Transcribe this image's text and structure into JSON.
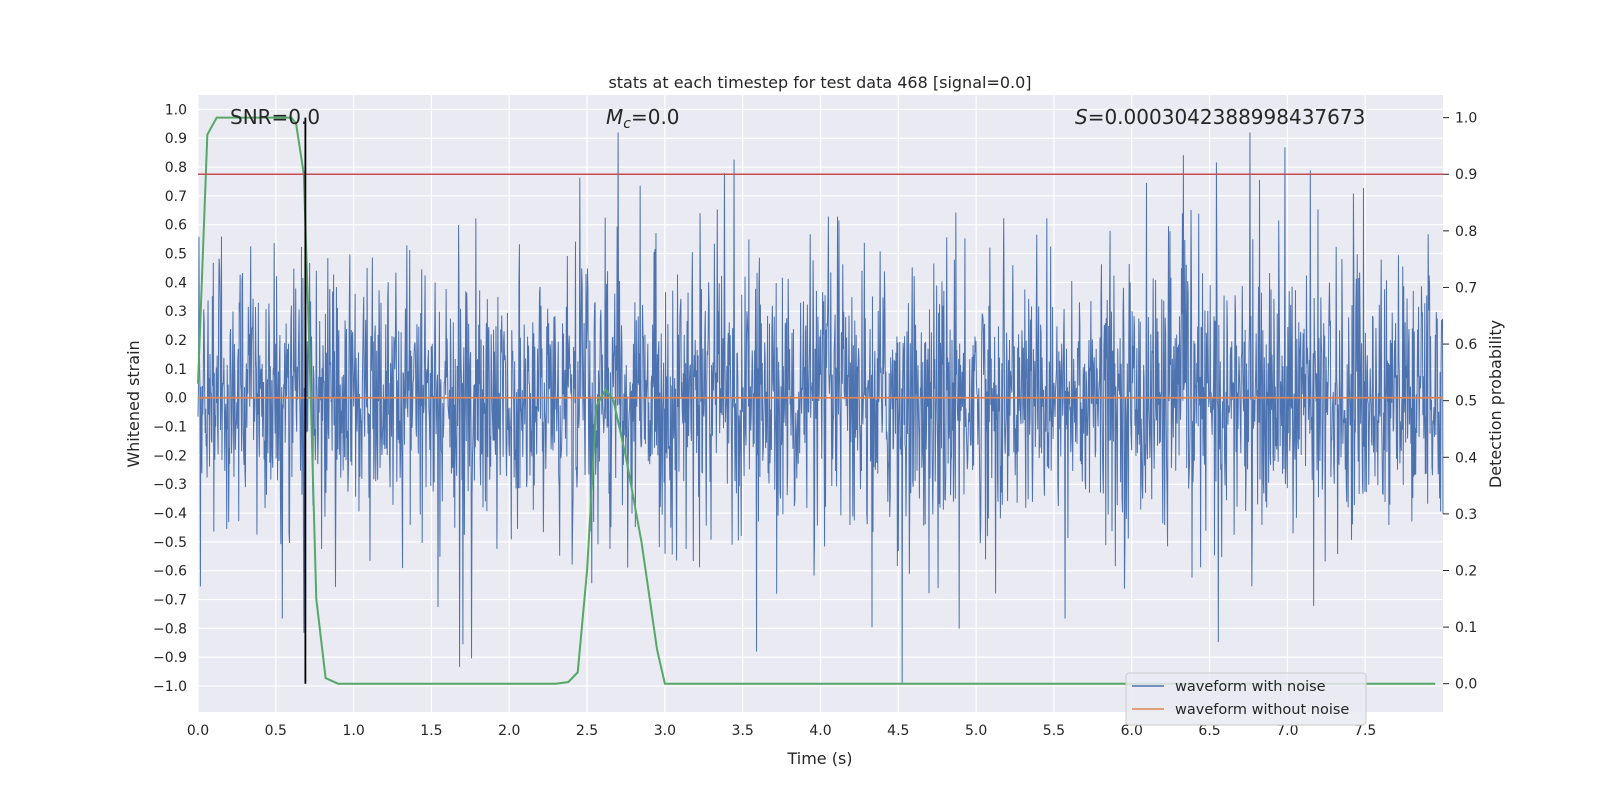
{
  "chart_data": {
    "type": "line",
    "title": "stats at each timestep for test data 468 [signal=0.0]",
    "xlabel": "Time (s)",
    "ylabel": "Whitened strain",
    "y2label": "Detection probability",
    "xlim": [
      0.0,
      8.0
    ],
    "ylim": [
      -1.09,
      1.05
    ],
    "y2lim": [
      -0.05,
      1.04
    ],
    "x_ticks": [
      "0.0",
      "0.5",
      "1.0",
      "1.5",
      "2.0",
      "2.5",
      "3.0",
      "3.5",
      "4.0",
      "4.5",
      "5.0",
      "5.5",
      "6.0",
      "6.5",
      "7.0",
      "7.5"
    ],
    "y_ticks": [
      "1.0",
      "0.9",
      "0.8",
      "0.7",
      "0.6",
      "0.5",
      "0.4",
      "0.3",
      "0.2",
      "0.1",
      "0.0",
      "−0.1",
      "−0.2",
      "−0.3",
      "−0.4",
      "−0.5",
      "−0.6",
      "−0.7",
      "−0.8",
      "−0.9",
      "−1.0"
    ],
    "y2_ticks": [
      "1.0",
      "0.9",
      "0.8",
      "0.7",
      "0.6",
      "0.5",
      "0.4",
      "0.3",
      "0.2",
      "0.1",
      "0.0"
    ],
    "grid": true,
    "legend_position": "lower-right",
    "annotations": {
      "snr": "SNR=0.0",
      "mc_symbol": "M",
      "mc_sub": "c",
      "mc_value": "=0.0",
      "s_symbol": "S",
      "s_value": "=0.0003042388998437673"
    },
    "series": [
      {
        "name": "waveform with noise",
        "axis": "left",
        "color": "#4c72b0",
        "style": "dense noise, amplitude ~±0.4 with spikes up to ±1.0"
      },
      {
        "name": "waveform without noise",
        "axis": "left",
        "color": "#dd8452",
        "values": [
          [
            0.0,
            0.0
          ],
          [
            8.0,
            0.0
          ]
        ]
      },
      {
        "name": "detection probability",
        "axis": "right",
        "color": "#55a868",
        "values": [
          [
            0.0,
            0.53
          ],
          [
            0.06,
            0.97
          ],
          [
            0.12,
            1.0
          ],
          [
            0.2,
            1.0
          ],
          [
            0.3,
            1.0
          ],
          [
            0.4,
            1.0
          ],
          [
            0.5,
            1.0
          ],
          [
            0.6,
            1.0
          ],
          [
            0.63,
            0.99
          ],
          [
            0.68,
            0.9
          ],
          [
            0.72,
            0.55
          ],
          [
            0.76,
            0.15
          ],
          [
            0.82,
            0.01
          ],
          [
            0.9,
            0.0
          ],
          [
            1.5,
            0.0
          ],
          [
            2.0,
            0.0
          ],
          [
            2.3,
            0.0
          ],
          [
            2.38,
            0.003
          ],
          [
            2.44,
            0.02
          ],
          [
            2.5,
            0.2
          ],
          [
            2.56,
            0.49
          ],
          [
            2.62,
            0.52
          ],
          [
            2.67,
            0.5
          ],
          [
            2.75,
            0.4
          ],
          [
            2.85,
            0.25
          ],
          [
            2.95,
            0.06
          ],
          [
            3.0,
            0.0
          ],
          [
            4.0,
            0.0
          ],
          [
            5.0,
            0.0
          ],
          [
            6.0,
            0.0
          ],
          [
            7.0,
            0.0
          ],
          [
            7.95,
            0.0
          ]
        ]
      }
    ],
    "threshold_line": {
      "axis": "right",
      "value": 0.9,
      "color": "#c44e52"
    },
    "marker_line": {
      "x": 0.69,
      "color": "#000000"
    }
  }
}
